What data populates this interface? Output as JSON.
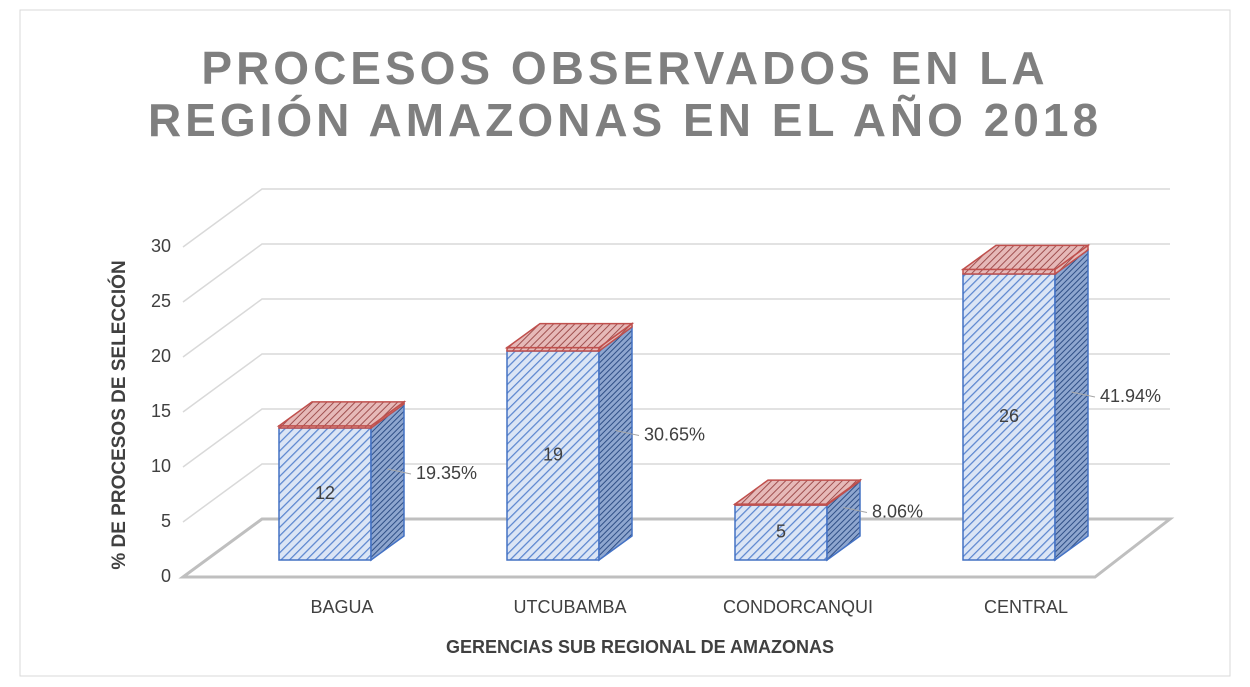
{
  "chart_data": {
    "type": "bar3d",
    "title": "PROCESOS OBSERVADOS EN LA REGIÓN AMAZONAS EN EL AÑO 2018",
    "x_label": "GERENCIAS SUB REGIONAL DE AMAZONAS",
    "y_label": "%  DE PROCESOS DE SELECCIÓN",
    "categories": [
      "BAGUA",
      "UTCUBAMBA",
      "CONDORCANQUI",
      "CENTRAL"
    ],
    "series": [
      {
        "color": "#4472c4",
        "values": [
          12,
          19,
          5,
          26
        ]
      },
      {
        "color": "#c0504d",
        "values": [
          0.1935,
          0.3065,
          0.0806,
          0.4194
        ],
        "value_labels": [
          "19.35%",
          "30.65%",
          "8.06%",
          "41.94%"
        ]
      }
    ],
    "ylim": [
      0,
      30
    ],
    "yticks": [
      0,
      5,
      10,
      15,
      20,
      25,
      30
    ],
    "grid": true
  }
}
